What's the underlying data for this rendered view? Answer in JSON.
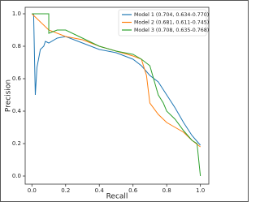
{
  "chart_data": {
    "type": "line",
    "xlabel": "Recall",
    "ylabel": "Precision",
    "xlim": [
      -0.04,
      1.05
    ],
    "ylim": [
      -0.05,
      1.04
    ],
    "xticks": [
      {
        "value": 0,
        "label": "0.0"
      },
      {
        "value": 0.2,
        "label": "0.2"
      },
      {
        "value": 0.4,
        "label": "0.4"
      },
      {
        "value": 0.6,
        "label": "0.6"
      },
      {
        "value": 0.8,
        "label": "0.8"
      },
      {
        "value": 1,
        "label": "1.0"
      }
    ],
    "yticks": [
      {
        "value": 0,
        "label": "0.0"
      },
      {
        "value": 0.2,
        "label": "0.2"
      },
      {
        "value": 0.4,
        "label": "0.4"
      },
      {
        "value": 0.6,
        "label": "0.6"
      },
      {
        "value": 0.8,
        "label": "0.8"
      },
      {
        "value": 1,
        "label": "1.0"
      }
    ],
    "legend": "upper right",
    "series": [
      {
        "name": "Model 1 (0.704, 0.634-0.770)",
        "color": "#1f77b4",
        "x": [
          0,
          0.01,
          0.02,
          0.03,
          0.05,
          0.07,
          0.08,
          0.1,
          0.15,
          0.2,
          0.3,
          0.4,
          0.5,
          0.6,
          0.65,
          0.7,
          0.75,
          0.8,
          0.85,
          0.9,
          0.95,
          1.0
        ],
        "values": [
          1.0,
          1.0,
          0.5,
          0.67,
          0.78,
          0.8,
          0.83,
          0.82,
          0.85,
          0.86,
          0.82,
          0.78,
          0.76,
          0.72,
          0.68,
          0.62,
          0.58,
          0.5,
          0.42,
          0.33,
          0.25,
          0.19
        ]
      },
      {
        "name": "Model 2 (0.681, 0.611-0.745)",
        "color": "#ff7f0e",
        "x": [
          0,
          0.1,
          0.2,
          0.3,
          0.4,
          0.5,
          0.6,
          0.65,
          0.68,
          0.7,
          0.75,
          0.8,
          0.85,
          0.9,
          0.95,
          1.0
        ],
        "values": [
          1.0,
          0.9,
          0.86,
          0.84,
          0.8,
          0.77,
          0.74,
          0.72,
          0.62,
          0.45,
          0.38,
          0.33,
          0.3,
          0.27,
          0.22,
          0.18
        ]
      },
      {
        "name": "Model 3 (0.708, 0.635-0.768)",
        "color": "#2ca02c",
        "x": [
          0,
          0.1,
          0.1,
          0.15,
          0.2,
          0.3,
          0.4,
          0.5,
          0.6,
          0.65,
          0.7,
          0.75,
          0.78,
          0.8,
          0.85,
          0.9,
          0.95,
          0.98,
          1.0
        ],
        "values": [
          1.0,
          1.0,
          0.88,
          0.9,
          0.9,
          0.85,
          0.8,
          0.77,
          0.75,
          0.72,
          0.68,
          0.5,
          0.45,
          0.4,
          0.35,
          0.28,
          0.22,
          0.2,
          0.0
        ]
      }
    ]
  }
}
